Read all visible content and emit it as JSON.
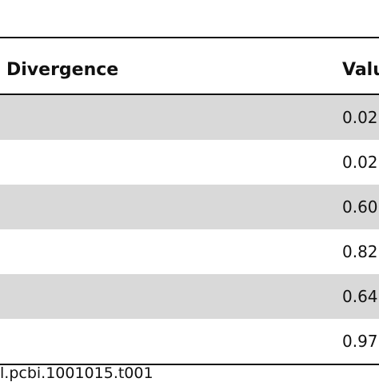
{
  "table": {
    "headers": {
      "divergence": "Divergence",
      "value": "Valu"
    },
    "rows": [
      {
        "divergence": "",
        "value": "0.02"
      },
      {
        "divergence": "",
        "value": "0.02"
      },
      {
        "divergence": "",
        "value": "0.60"
      },
      {
        "divergence": "",
        "value": "0.82"
      },
      {
        "divergence": "",
        "value": "0.64"
      },
      {
        "divergence": "",
        "value": "0.97"
      }
    ]
  },
  "footer": {
    "doi": "l.pcbi.1001015.t001"
  },
  "colors": {
    "shaded_row": "#d9d9d9",
    "rule": "#111111"
  }
}
